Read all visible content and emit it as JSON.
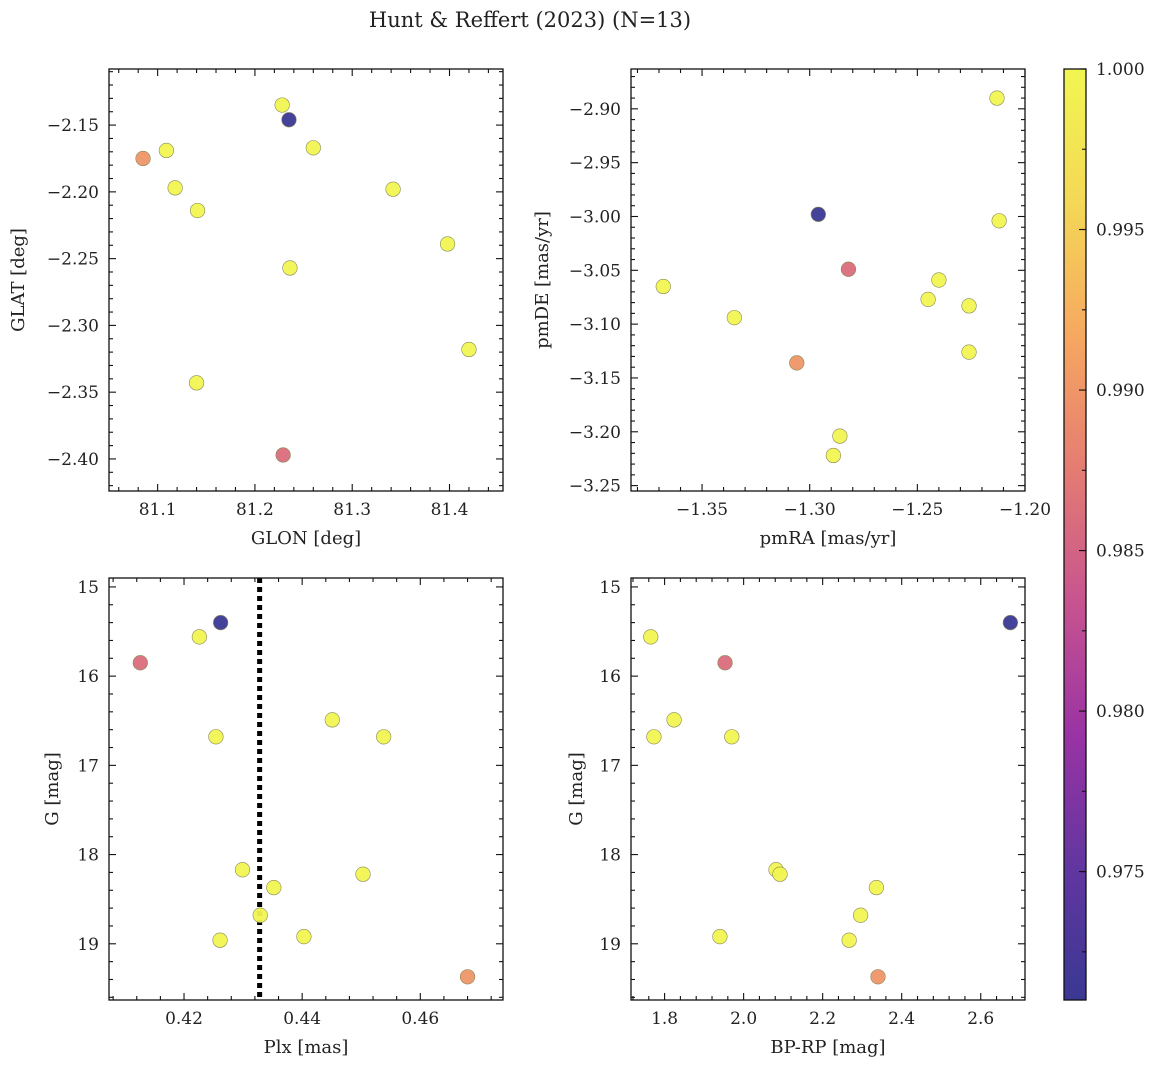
{
  "chart_data": {
    "type": "scatter",
    "title": "Hunt & Reffert (2023) (N=13)",
    "colorbar": {
      "colormap": "plasma",
      "range": [
        0.971,
        1.0
      ],
      "ticks": [
        "0.975",
        "0.980",
        "0.985",
        "0.990",
        "0.995",
        "1.000"
      ],
      "colors": [
        "#3a3893",
        "#6236a0",
        "#9a33a4",
        "#c8548f",
        "#e57c72",
        "#f6a860",
        "#f4d856",
        "#f1f651"
      ]
    },
    "panels": [
      {
        "xlabel": "GLON [deg]",
        "ylabel": "GLAT [deg]",
        "xlim": [
          81.05,
          81.455
        ],
        "ylim": [
          -2.424,
          -2.108
        ],
        "y_inverted": false,
        "xticks": [
          "81.1",
          "81.2",
          "81.3",
          "81.4"
        ],
        "yticks": [
          "−2.15",
          "−2.20",
          "−2.25",
          "−2.30",
          "−2.35",
          "−2.40"
        ],
        "points": [
          {
            "x": 81.228,
            "y": -2.135,
            "p": 1.0
          },
          {
            "x": 81.235,
            "y": -2.146,
            "p": 0.971
          },
          {
            "x": 81.26,
            "y": -2.167,
            "p": 1.0
          },
          {
            "x": 81.109,
            "y": -2.169,
            "p": 1.0
          },
          {
            "x": 81.085,
            "y": -2.175,
            "p": 0.99
          },
          {
            "x": 81.118,
            "y": -2.197,
            "p": 1.0
          },
          {
            "x": 81.342,
            "y": -2.198,
            "p": 1.0
          },
          {
            "x": 81.141,
            "y": -2.214,
            "p": 1.0
          },
          {
            "x": 81.398,
            "y": -2.239,
            "p": 1.0
          },
          {
            "x": 81.236,
            "y": -2.257,
            "p": 1.0
          },
          {
            "x": 81.42,
            "y": -2.318,
            "p": 1.0
          },
          {
            "x": 81.14,
            "y": -2.343,
            "p": 1.0
          },
          {
            "x": 81.229,
            "y": -2.397,
            "p": 0.986
          }
        ]
      },
      {
        "xlabel": "pmRA [mas/yr]",
        "ylabel": "pmDE [mas/yr]",
        "xlim": [
          -1.383,
          -1.2
        ],
        "ylim": [
          -3.255,
          -2.863
        ],
        "y_inverted": false,
        "xticks": [
          "−1.35",
          "−1.30",
          "−1.25",
          "−1.20"
        ],
        "yticks": [
          "−2.90",
          "−2.95",
          "−3.00",
          "−3.05",
          "−3.10",
          "−3.15",
          "−3.20",
          "−3.25"
        ],
        "points": [
          {
            "x": -1.213,
            "y": -2.89,
            "p": 1.0
          },
          {
            "x": -1.296,
            "y": -2.998,
            "p": 0.971
          },
          {
            "x": -1.212,
            "y": -3.004,
            "p": 1.0
          },
          {
            "x": -1.282,
            "y": -3.049,
            "p": 0.986
          },
          {
            "x": -1.24,
            "y": -3.059,
            "p": 1.0
          },
          {
            "x": -1.368,
            "y": -3.065,
            "p": 1.0
          },
          {
            "x": -1.245,
            "y": -3.077,
            "p": 1.0
          },
          {
            "x": -1.226,
            "y": -3.083,
            "p": 1.0
          },
          {
            "x": -1.335,
            "y": -3.094,
            "p": 1.0
          },
          {
            "x": -1.226,
            "y": -3.126,
            "p": 1.0
          },
          {
            "x": -1.306,
            "y": -3.136,
            "p": 0.99
          },
          {
            "x": -1.286,
            "y": -3.204,
            "p": 1.0
          },
          {
            "x": -1.289,
            "y": -3.222,
            "p": 1.0
          }
        ]
      },
      {
        "xlabel": "Plx [mas]",
        "ylabel": "G [mag]",
        "xlim": [
          0.4073,
          0.474
        ],
        "ylim": [
          14.9,
          19.63
        ],
        "y_inverted": true,
        "xticks": [
          "0.42",
          "0.44",
          "0.46"
        ],
        "yticks": [
          "15",
          "16",
          "17",
          "18",
          "19"
        ],
        "vline": 0.4328,
        "points": [
          {
            "x": 0.4262,
            "y": 15.4,
            "p": 0.971
          },
          {
            "x": 0.4226,
            "y": 15.56,
            "p": 1.0
          },
          {
            "x": 0.4126,
            "y": 15.85,
            "p": 0.986
          },
          {
            "x": 0.4451,
            "y": 16.49,
            "p": 1.0
          },
          {
            "x": 0.4254,
            "y": 16.68,
            "p": 1.0
          },
          {
            "x": 0.4538,
            "y": 16.68,
            "p": 1.0
          },
          {
            "x": 0.4299,
            "y": 18.17,
            "p": 1.0
          },
          {
            "x": 0.4503,
            "y": 18.22,
            "p": 1.0
          },
          {
            "x": 0.4352,
            "y": 18.37,
            "p": 1.0
          },
          {
            "x": 0.4329,
            "y": 18.68,
            "p": 1.0
          },
          {
            "x": 0.4403,
            "y": 18.92,
            "p": 1.0
          },
          {
            "x": 0.4261,
            "y": 18.96,
            "p": 1.0
          },
          {
            "x": 0.468,
            "y": 19.37,
            "p": 0.99
          }
        ]
      },
      {
        "xlabel": "BP-RP [mag]",
        "ylabel": "G [mag]",
        "xlim": [
          1.715,
          2.712
        ],
        "ylim": [
          14.9,
          19.63
        ],
        "y_inverted": true,
        "xticks": [
          "1.8",
          "2.0",
          "2.2",
          "2.4",
          "2.6"
        ],
        "yticks": [
          "15",
          "16",
          "17",
          "18",
          "19"
        ],
        "points": [
          {
            "x": 2.675,
            "y": 15.4,
            "p": 0.971
          },
          {
            "x": 1.765,
            "y": 15.56,
            "p": 1.0
          },
          {
            "x": 1.953,
            "y": 15.85,
            "p": 0.986
          },
          {
            "x": 1.824,
            "y": 16.49,
            "p": 1.0
          },
          {
            "x": 1.773,
            "y": 16.68,
            "p": 1.0
          },
          {
            "x": 1.97,
            "y": 16.68,
            "p": 1.0
          },
          {
            "x": 2.082,
            "y": 18.17,
            "p": 1.0
          },
          {
            "x": 2.092,
            "y": 18.22,
            "p": 1.0
          },
          {
            "x": 2.336,
            "y": 18.37,
            "p": 1.0
          },
          {
            "x": 2.296,
            "y": 18.68,
            "p": 1.0
          },
          {
            "x": 1.94,
            "y": 18.92,
            "p": 1.0
          },
          {
            "x": 2.267,
            "y": 18.96,
            "p": 1.0
          },
          {
            "x": 2.34,
            "y": 19.37,
            "p": 0.99
          }
        ]
      }
    ]
  }
}
